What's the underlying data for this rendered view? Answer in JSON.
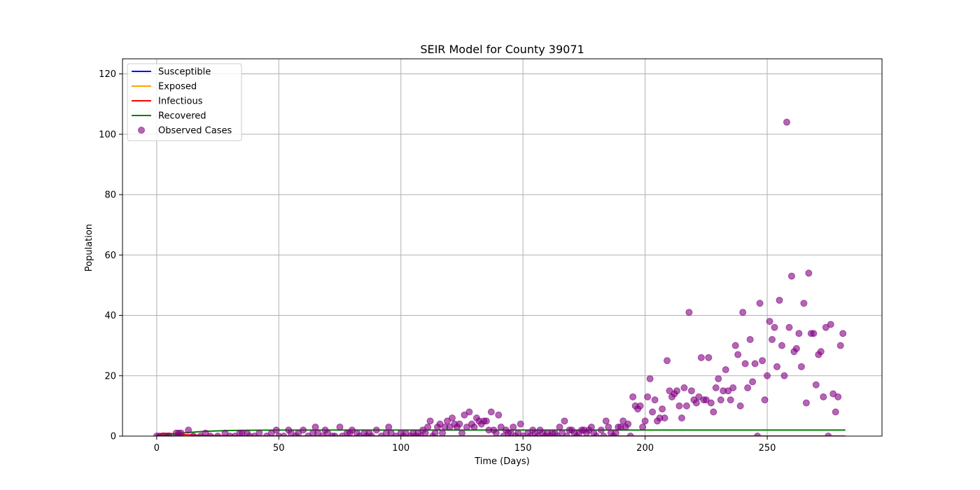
{
  "chart_data": {
    "type": "line",
    "title": "SEIR Model for County 39071",
    "xlabel": "Time (Days)",
    "ylabel": "Population",
    "xlim": [
      -14,
      297
    ],
    "ylim": [
      0,
      125
    ],
    "xticks": [
      0,
      50,
      100,
      150,
      200,
      250
    ],
    "yticks": [
      0,
      20,
      40,
      60,
      80,
      100,
      120
    ],
    "grid": true,
    "legend_position": "top-left",
    "series": [
      {
        "name": "Susceptible",
        "kind": "line",
        "color": "#0000ff",
        "x": [
          0,
          282
        ],
        "y": [
          0,
          0
        ]
      },
      {
        "name": "Exposed",
        "kind": "line",
        "color": "#ffa500",
        "x": [
          0,
          2,
          5,
          10,
          20,
          40,
          282
        ],
        "y": [
          0,
          0.7,
          0.6,
          0.3,
          0.1,
          0,
          0
        ]
      },
      {
        "name": "Infectious",
        "kind": "line",
        "color": "#ff0000",
        "x": [
          0,
          2,
          5,
          10,
          20,
          40,
          282
        ],
        "y": [
          0,
          0.9,
          0.9,
          0.5,
          0.2,
          0.02,
          0
        ]
      },
      {
        "name": "Recovered",
        "kind": "line",
        "color": "#008000",
        "x": [
          0,
          5,
          10,
          15,
          20,
          30,
          40,
          60,
          282
        ],
        "y": [
          0,
          0.5,
          1.0,
          1.3,
          1.6,
          1.85,
          1.95,
          2.0,
          2.0
        ]
      },
      {
        "name": "Observed Cases",
        "kind": "scatter",
        "color": "#800080",
        "x": [
          0,
          1,
          3,
          5,
          8,
          9,
          10,
          13,
          15,
          18,
          20,
          22,
          25,
          28,
          30,
          32,
          34,
          35,
          37,
          38,
          40,
          42,
          45,
          47,
          49,
          50,
          52,
          54,
          55,
          57,
          58,
          60,
          62,
          64,
          65,
          66,
          68,
          69,
          70,
          72,
          73,
          75,
          76,
          78,
          79,
          80,
          82,
          83,
          85,
          86,
          87,
          88,
          90,
          92,
          94,
          95,
          96,
          98,
          100,
          101,
          102,
          104,
          105,
          106,
          107,
          108,
          109,
          110,
          111,
          112,
          113,
          114,
          115,
          116,
          117,
          118,
          119,
          120,
          121,
          122,
          123,
          124,
          125,
          126,
          127,
          128,
          129,
          130,
          131,
          132,
          133,
          134,
          135,
          136,
          137,
          138,
          139,
          140,
          141,
          142,
          143,
          144,
          145,
          146,
          147,
          148,
          149,
          150,
          152,
          153,
          154,
          155,
          156,
          157,
          158,
          159,
          160,
          161,
          162,
          163,
          164,
          165,
          166,
          167,
          168,
          169,
          170,
          171,
          172,
          173,
          174,
          175,
          176,
          177,
          178,
          179,
          180,
          182,
          183,
          184,
          185,
          186,
          187,
          188,
          189,
          190,
          191,
          192,
          193,
          194,
          195,
          196,
          197,
          198,
          199,
          200,
          201,
          202,
          203,
          204,
          205,
          206,
          207,
          208,
          209,
          210,
          211,
          212,
          213,
          214,
          215,
          216,
          217,
          218,
          219,
          220,
          221,
          222,
          223,
          224,
          225,
          226,
          227,
          228,
          229,
          230,
          231,
          232,
          233,
          234,
          235,
          236,
          237,
          238,
          239,
          240,
          241,
          242,
          243,
          244,
          245,
          246,
          247,
          248,
          249,
          250,
          251,
          252,
          253,
          254,
          255,
          256,
          257,
          258,
          259,
          260,
          261,
          262,
          263,
          264,
          265,
          266,
          267,
          268,
          269,
          270,
          271,
          272,
          273,
          274,
          275,
          276,
          277,
          278,
          279,
          280,
          281
        ],
        "y": [
          0,
          0,
          0,
          0,
          1,
          1,
          1,
          2,
          0,
          0,
          1,
          0,
          0,
          1,
          0,
          0,
          1,
          1,
          1,
          0,
          0,
          1,
          0,
          1,
          2,
          0,
          0,
          2,
          1,
          0,
          1,
          2,
          0,
          1,
          3,
          1,
          0,
          2,
          1,
          0,
          0,
          3,
          0,
          1,
          1,
          2,
          1,
          0,
          1,
          0,
          1,
          0,
          2,
          0,
          1,
          3,
          1,
          0,
          1,
          0,
          1,
          0,
          1,
          0,
          1,
          0,
          2,
          1,
          3,
          5,
          0,
          1,
          3,
          4,
          1,
          3,
          5,
          3,
          6,
          4,
          3,
          4,
          1,
          7,
          3,
          8,
          4,
          3,
          6,
          5,
          4,
          5,
          5,
          2,
          8,
          2,
          1,
          7,
          3,
          0,
          2,
          1,
          1,
          3,
          0,
          1,
          4,
          0,
          1,
          0,
          2,
          1,
          0,
          2,
          1,
          0,
          1,
          0,
          1,
          1,
          0,
          3,
          1,
          5,
          0,
          2,
          2,
          1,
          0,
          1,
          2,
          2,
          1,
          2,
          3,
          1,
          0,
          2,
          0,
          5,
          3,
          1,
          0,
          1,
          3,
          3,
          5,
          3,
          4,
          0,
          13,
          10,
          9,
          10,
          3,
          5,
          13,
          19,
          8,
          12,
          5,
          6,
          9,
          6,
          25,
          15,
          13,
          14,
          15,
          10,
          6,
          16,
          10,
          41,
          15,
          12,
          11,
          13,
          26,
          12,
          12,
          26,
          11,
          8,
          16,
          19,
          12,
          15,
          22,
          15,
          12,
          16,
          30,
          27,
          10,
          41,
          24,
          16,
          32,
          18,
          24,
          0,
          44,
          25,
          12,
          20,
          38,
          32,
          36,
          23,
          45,
          30,
          20,
          104,
          36,
          53,
          28,
          29,
          34,
          23,
          44,
          11,
          54,
          34,
          34,
          17,
          27,
          28,
          13,
          36,
          0,
          37,
          14,
          8,
          13,
          30,
          34
        ]
      }
    ]
  }
}
